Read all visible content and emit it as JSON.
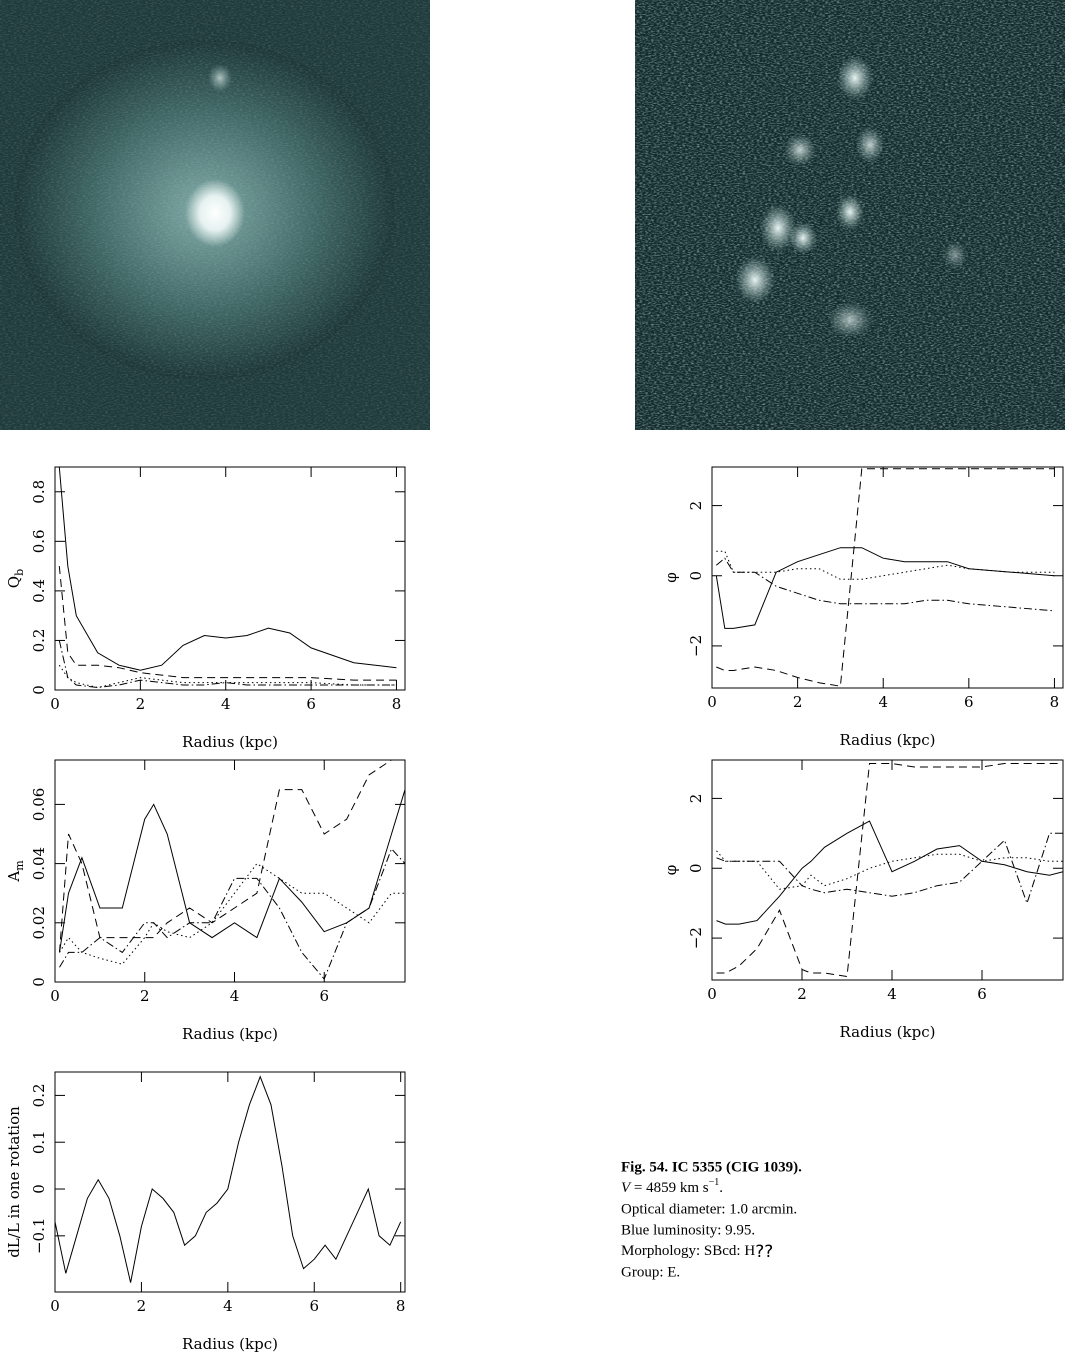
{
  "chart_data": [
    {
      "type": "line",
      "xlabel": "Radius (kpc)",
      "ylabel": {
        "main": "Q",
        "sub": "b"
      },
      "xlim": [
        0,
        8.2
      ],
      "ylim": [
        0,
        0.9
      ],
      "xticks": [
        0,
        2,
        4,
        6,
        8
      ],
      "yticks": [
        0,
        0.2,
        0.4,
        0.6,
        0.8
      ],
      "x": [
        0.1,
        0.3,
        0.5,
        1,
        1.5,
        2,
        2.5,
        3,
        3.5,
        4,
        4.5,
        5,
        5.5,
        6,
        7,
        8
      ],
      "series": [
        {
          "color": "#000",
          "style": "solid",
          "values": [
            0.9,
            0.5,
            0.3,
            0.15,
            0.1,
            0.08,
            0.1,
            0.18,
            0.22,
            0.21,
            0.22,
            0.25,
            0.23,
            0.17,
            0.11,
            0.09
          ]
        },
        {
          "color": "#000",
          "style": "dashed",
          "values": [
            0.5,
            0.15,
            0.1,
            0.1,
            0.09,
            0.07,
            0.06,
            0.05,
            0.05,
            0.05,
            0.05,
            0.05,
            0.05,
            0.05,
            0.04,
            0.04
          ]
        },
        {
          "color": "#000",
          "style": "dotted",
          "values": [
            0.1,
            0.05,
            0.03,
            0.01,
            0.03,
            0.05,
            0.04,
            0.03,
            0.03,
            0.03,
            0.03,
            0.03,
            0.03,
            0.03,
            0.02,
            0.02
          ]
        },
        {
          "color": "#000",
          "style": "dashdot",
          "values": [
            0.2,
            0.05,
            0.02,
            0.01,
            0.02,
            0.04,
            0.03,
            0.02,
            0.02,
            0.03,
            0.02,
            0.02,
            0.02,
            0.02,
            0.02,
            0.02
          ]
        }
      ]
    },
    {
      "type": "line",
      "xlabel": "Radius (kpc)",
      "ylabel": {
        "main": "φ"
      },
      "xlim": [
        0,
        8.2
      ],
      "ylim": [
        -3.2,
        3.1
      ],
      "xticks": [
        0,
        2,
        4,
        6,
        8
      ],
      "yticks": [
        {
          "value": -2,
          "label": "−2"
        },
        0,
        2
      ],
      "x": [
        0.1,
        0.3,
        0.5,
        1,
        1.5,
        2,
        2.5,
        3,
        3.5,
        4,
        4.5,
        5,
        5.5,
        6,
        7,
        8
      ],
      "series": [
        {
          "color": "#000",
          "style": "solid",
          "values": [
            0,
            -1.5,
            -1.5,
            -1.4,
            0.1,
            0.4,
            0.6,
            0.8,
            0.8,
            0.5,
            0.4,
            0.4,
            0.4,
            0.2,
            0.1,
            0
          ]
        },
        {
          "color": "#000",
          "style": "dotted",
          "values": [
            0.7,
            0.7,
            0.1,
            0.1,
            0.1,
            0.2,
            0.2,
            -0.1,
            -0.1,
            0,
            0.1,
            0.2,
            0.3,
            0.2,
            0.1,
            0.1
          ]
        },
        {
          "color": "#000",
          "style": "dashdot",
          "values": [
            0.3,
            0.5,
            0.1,
            0.1,
            -0.3,
            -0.5,
            -0.7,
            -0.8,
            -0.8,
            -0.8,
            -0.8,
            -0.7,
            -0.7,
            -0.8,
            -0.9,
            -1
          ]
        },
        {
          "color": "#000",
          "style": "dashed",
          "values": [
            -2.6,
            -2.7,
            -2.7,
            -2.6,
            -2.7,
            -2.9,
            -3.05,
            -3.15,
            3.05,
            3.05,
            3.05,
            3.05,
            3.05,
            3.05,
            3.05,
            3.05
          ]
        }
      ]
    },
    {
      "type": "line",
      "xlabel": "Radius (kpc)",
      "ylabel": {
        "main": "A",
        "sub": "m"
      },
      "xlim": [
        0,
        7.8
      ],
      "ylim": [
        0,
        0.075
      ],
      "xticks": [
        0,
        2,
        4,
        6
      ],
      "yticks": [
        0,
        0.02,
        0.04,
        0.06
      ],
      "x": [
        0.1,
        0.3,
        0.6,
        1,
        1.5,
        2,
        2.2,
        2.5,
        3,
        3.5,
        4,
        4.5,
        5,
        5.5,
        6,
        6.5,
        7,
        7.5,
        7.8
      ],
      "series": [
        {
          "color": "#000",
          "style": "solid",
          "values": [
            0.01,
            0.03,
            0.042,
            0.025,
            0.025,
            0.055,
            0.06,
            0.05,
            0.02,
            0.015,
            0.02,
            0.015,
            0.035,
            0.027,
            0.017,
            0.02,
            0.025,
            0.05,
            0.065
          ]
        },
        {
          "color": "#000",
          "style": "dashed",
          "values": [
            0.01,
            0.05,
            0.04,
            0.015,
            0.015,
            0.015,
            0.015,
            0.02,
            0.025,
            0.02,
            0.025,
            0.03,
            0.065,
            0.065,
            0.05,
            0.055,
            0.07,
            0.075,
            0.075
          ]
        },
        {
          "color": "#000",
          "style": "dotted",
          "values": [
            0.01,
            0.015,
            0.01,
            0.008,
            0.006,
            0.015,
            0.02,
            0.017,
            0.015,
            0.02,
            0.03,
            0.04,
            0.035,
            0.03,
            0.03,
            0.025,
            0.02,
            0.03,
            0.03
          ]
        },
        {
          "color": "#000",
          "style": "dashdot",
          "values": [
            0.005,
            0.01,
            0.01,
            0.015,
            0.01,
            0.02,
            0.02,
            0.015,
            0.02,
            0.02,
            0.035,
            0.035,
            0.025,
            0.01,
            0.001,
            0.02,
            0.025,
            0.045,
            0.04
          ]
        }
      ]
    },
    {
      "type": "line",
      "xlabel": "Radius (kpc)",
      "ylabel": {
        "main": "φ"
      },
      "xlim": [
        0,
        7.8
      ],
      "ylim": [
        -3.2,
        3.1
      ],
      "xticks": [
        0,
        2,
        4,
        6
      ],
      "yticks": [
        {
          "value": -2,
          "label": "−2"
        },
        0,
        2
      ],
      "x": [
        0.1,
        0.3,
        0.6,
        1,
        1.5,
        2,
        2.2,
        2.5,
        3,
        3.5,
        4,
        4.5,
        5,
        5.5,
        6,
        6.5,
        7,
        7.5,
        7.8
      ],
      "series": [
        {
          "color": "#000",
          "style": "solid",
          "values": [
            -1.5,
            -1.6,
            -1.6,
            -1.5,
            -0.8,
            0,
            0.2,
            0.6,
            1,
            1.35,
            -0.1,
            0.2,
            0.55,
            0.65,
            0.2,
            0.1,
            -0.1,
            -0.2,
            -0.1
          ]
        },
        {
          "color": "#000",
          "style": "dotted",
          "values": [
            0.5,
            0.2,
            0.2,
            0.2,
            -0.6,
            -0.5,
            -0.2,
            -0.5,
            -0.3,
            0,
            0.2,
            0.3,
            0.4,
            0.4,
            0.2,
            0.3,
            0.3,
            0.2,
            0.2
          ]
        },
        {
          "color": "#000",
          "style": "dashdot",
          "values": [
            0.3,
            0.2,
            0.2,
            0.2,
            0.2,
            -0.5,
            -0.6,
            -0.7,
            -0.6,
            -0.7,
            -0.8,
            -0.7,
            -0.5,
            -0.4,
            0.2,
            0.8,
            -1,
            1,
            1
          ]
        },
        {
          "color": "#000",
          "style": "dashed",
          "values": [
            -3,
            -3,
            -2.8,
            -2.3,
            -1.2,
            -2.9,
            -3,
            -3,
            -3.1,
            3,
            3,
            2.9,
            2.9,
            2.9,
            2.9,
            3,
            3,
            3,
            3
          ]
        }
      ]
    },
    {
      "type": "line",
      "xlabel": "Radius (kpc)",
      "ylabel": {
        "main": "dL/L in one rotation"
      },
      "xlim": [
        0,
        8.1
      ],
      "ylim": [
        -0.22,
        0.25
      ],
      "xticks": [
        0,
        2,
        4,
        6,
        8
      ],
      "yticks": [
        {
          "value": -0.1,
          "label": "−0.1"
        },
        0,
        0.1,
        0.2
      ],
      "x": [
        0,
        0.25,
        0.5,
        0.75,
        1,
        1.25,
        1.5,
        1.75,
        2,
        2.25,
        2.5,
        2.75,
        3,
        3.25,
        3.5,
        3.75,
        4,
        4.25,
        4.5,
        4.75,
        5,
        5.25,
        5.5,
        5.75,
        6,
        6.25,
        6.5,
        6.75,
        7,
        7.25,
        7.5,
        7.75,
        8
      ],
      "series": [
        {
          "color": "#000",
          "style": "solid",
          "values": [
            -0.07,
            -0.18,
            -0.1,
            -0.02,
            0.02,
            -0.02,
            -0.1,
            -0.2,
            -0.08,
            0,
            -0.02,
            -0.05,
            -0.12,
            -0.1,
            -0.05,
            -0.03,
            0,
            0.1,
            0.18,
            0.24,
            0.18,
            0.05,
            -0.1,
            -0.17,
            -0.15,
            -0.12,
            -0.15,
            -0.1,
            -0.05,
            0,
            -0.1,
            -0.12,
            -0.07
          ]
        }
      ]
    }
  ],
  "caption": {
    "title": "Fig. 54. IC 5355 (CIG 1039).",
    "velocity": {
      "var": "V",
      "text": " = 4859 km s",
      "sup": "−1",
      "end": "."
    },
    "lines": [
      "Optical diameter: 1.0 arcmin.",
      "Blue luminosity: 9.95.",
      "Morphology: SBcd: H",
      "Group: E."
    ],
    "morph_mark": "??"
  }
}
